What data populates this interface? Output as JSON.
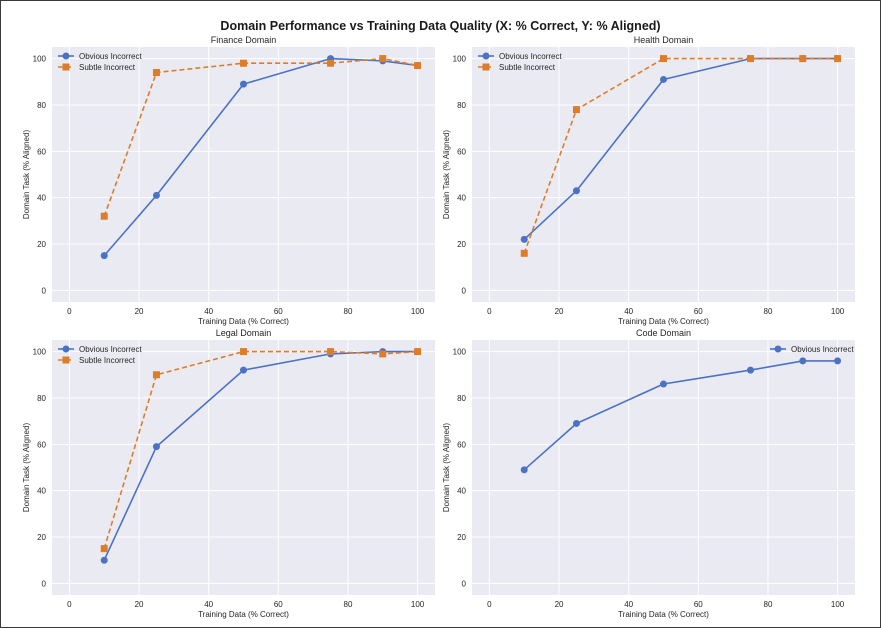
{
  "suptitle": "Domain Performance vs Training Data Quality (X: % Correct, Y: % Aligned)",
  "colors": {
    "obvious": "#4c72c4",
    "subtle": "#dd7d2a",
    "plot_bg": "#eaeaf2",
    "grid": "#ffffff",
    "text": "#262626"
  },
  "chart_data": [
    {
      "type": "line",
      "title": "Finance Domain",
      "xlabel": "Training Data (% Correct)",
      "ylabel": "Domain Task (% Aligned)",
      "xlim": [
        -5,
        105
      ],
      "ylim": [
        -5,
        105
      ],
      "xticks": [
        0,
        20,
        40,
        60,
        80,
        100
      ],
      "yticks": [
        0,
        20,
        40,
        60,
        80,
        100
      ],
      "grid": true,
      "legend": "top-left",
      "series": [
        {
          "name": "Obvious Incorrect",
          "style": "solid-circle",
          "x": [
            10,
            25,
            50,
            75,
            90,
            100
          ],
          "y": [
            15,
            41,
            89,
            100,
            99,
            97
          ]
        },
        {
          "name": "Subtle Incorrect",
          "style": "dashed-square",
          "x": [
            10,
            25,
            50,
            75,
            90,
            100
          ],
          "y": [
            32,
            94,
            98,
            98,
            100,
            97
          ]
        }
      ]
    },
    {
      "type": "line",
      "title": "Health Domain",
      "xlabel": "Training Data (% Correct)",
      "ylabel": "Domain Task (% Aligned)",
      "xlim": [
        -5,
        105
      ],
      "ylim": [
        -5,
        105
      ],
      "xticks": [
        0,
        20,
        40,
        60,
        80,
        100
      ],
      "yticks": [
        0,
        20,
        40,
        60,
        80,
        100
      ],
      "grid": true,
      "legend": "top-left",
      "series": [
        {
          "name": "Obvious Incorrect",
          "style": "solid-circle",
          "x": [
            10,
            25,
            50,
            75,
            90,
            100
          ],
          "y": [
            22,
            43,
            91,
            100,
            100,
            100
          ]
        },
        {
          "name": "Subtle Incorrect",
          "style": "dashed-square",
          "x": [
            10,
            25,
            50,
            75,
            90,
            100
          ],
          "y": [
            16,
            78,
            100,
            100,
            100,
            100
          ]
        }
      ]
    },
    {
      "type": "line",
      "title": "Legal Domain",
      "xlabel": "Training Data (% Correct)",
      "ylabel": "Domain Task (% Aligned)",
      "xlim": [
        -5,
        105
      ],
      "ylim": [
        -5,
        105
      ],
      "xticks": [
        0,
        20,
        40,
        60,
        80,
        100
      ],
      "yticks": [
        0,
        20,
        40,
        60,
        80,
        100
      ],
      "grid": true,
      "legend": "top-left",
      "series": [
        {
          "name": "Obvious Incorrect",
          "style": "solid-circle",
          "x": [
            10,
            25,
            50,
            75,
            90,
            100
          ],
          "y": [
            10,
            59,
            92,
            99,
            100,
            100
          ]
        },
        {
          "name": "Subtle Incorrect",
          "style": "dashed-square",
          "x": [
            10,
            25,
            50,
            75,
            90,
            100
          ],
          "y": [
            15,
            90,
            100,
            100,
            99,
            100
          ]
        }
      ]
    },
    {
      "type": "line",
      "title": "Code Domain",
      "xlabel": "Training Data (% Correct)",
      "ylabel": "Domain Task (% Aligned)",
      "xlim": [
        -5,
        105
      ],
      "ylim": [
        -5,
        105
      ],
      "xticks": [
        0,
        20,
        40,
        60,
        80,
        100
      ],
      "yticks": [
        0,
        20,
        40,
        60,
        80,
        100
      ],
      "grid": true,
      "legend": "top-right",
      "series": [
        {
          "name": "Obvious Incorrect",
          "style": "solid-circle",
          "x": [
            10,
            25,
            50,
            75,
            90,
            100
          ],
          "y": [
            49,
            69,
            86,
            92,
            96,
            96
          ]
        }
      ]
    }
  ]
}
